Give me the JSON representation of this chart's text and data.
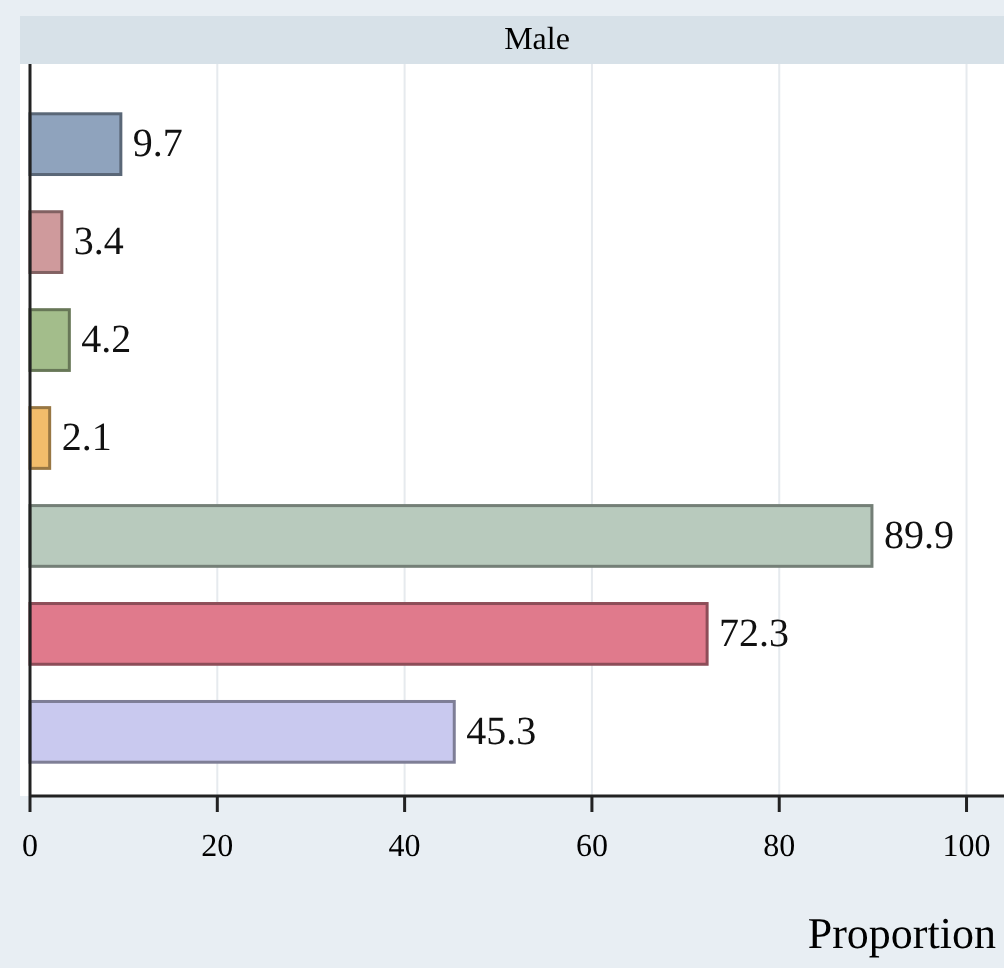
{
  "chart_data": {
    "type": "bar",
    "orientation": "horizontal",
    "title": "Male",
    "xlabel": "Proportion",
    "categories": [
      null,
      null,
      null,
      null,
      null,
      null,
      null
    ],
    "values": [
      9.7,
      3.4,
      4.2,
      2.1,
      89.9,
      72.3,
      45.3
    ],
    "colors": [
      "#8fa3bd",
      "#cf9a9c",
      "#a3bd8b",
      "#f2bd6b",
      "#b8cabd",
      "#e07a8c",
      "#c9c9ef"
    ],
    "xlim": [
      0,
      104
    ],
    "xticks": [
      0,
      20,
      40,
      60,
      80,
      100
    ],
    "grid": "x",
    "data_labels": true,
    "tick_labels": "x"
  }
}
